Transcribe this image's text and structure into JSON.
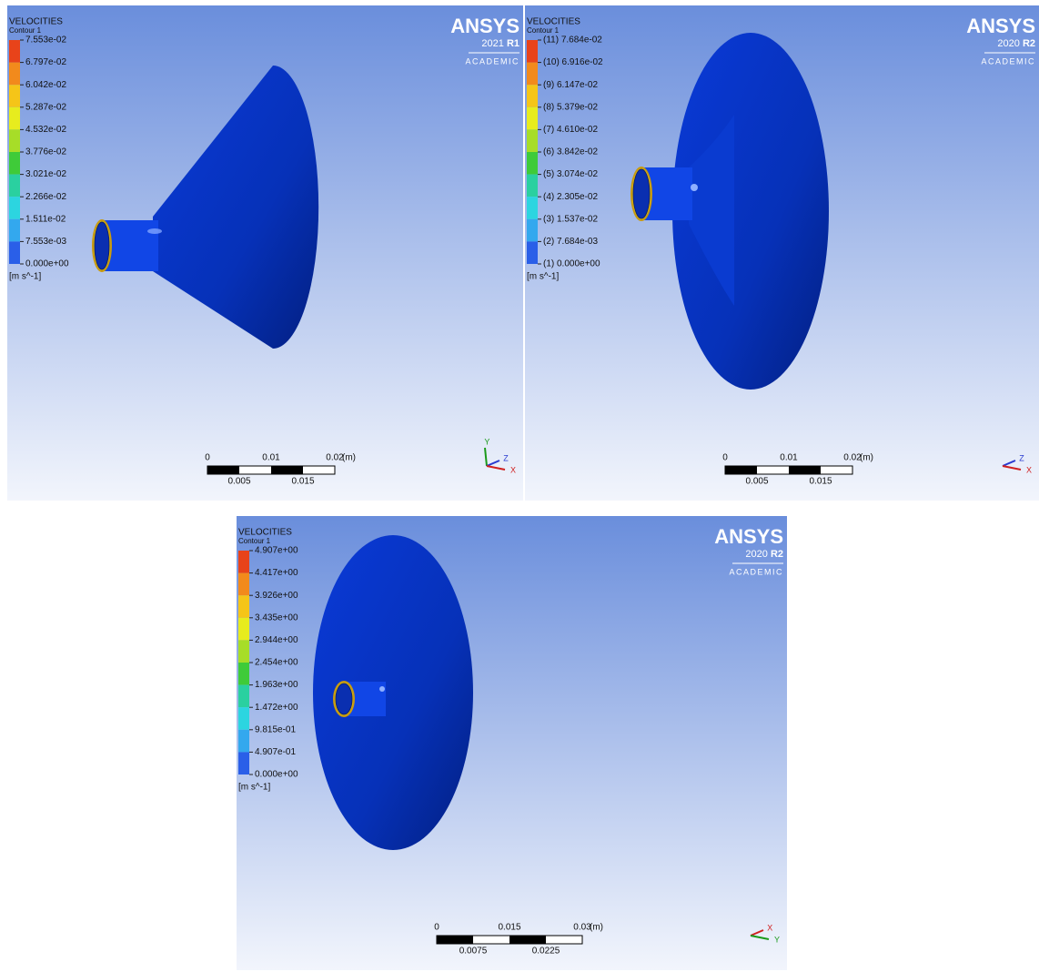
{
  "panels": [
    {
      "title": "VELOCITIES",
      "subtitle": "Contour 1",
      "legend": [
        "7.553e-02",
        "6.797e-02",
        "6.042e-02",
        "5.287e-02",
        "4.532e-02",
        "3.776e-02",
        "3.021e-02",
        "2.266e-02",
        "1.511e-02",
        "7.553e-03",
        "0.000e+00"
      ],
      "unit": "[m s^-1]",
      "logo": {
        "brand": "ANSYS",
        "year": "2021",
        "release": "R1",
        "edition": "ACADEMIC"
      },
      "scale": {
        "top": [
          "0",
          "0.01",
          "0.02",
          "(m)"
        ],
        "bottom": [
          "0.005",
          "0.015"
        ]
      },
      "axes": [
        "Y",
        "Z",
        "X"
      ]
    },
    {
      "title": "VELOCITIES",
      "subtitle": "Contour 1",
      "legend": [
        "(11) 7.684e-02",
        "(10) 6.916e-02",
        "(9) 6.147e-02",
        "(8) 5.379e-02",
        "(7) 4.610e-02",
        "(6) 3.842e-02",
        "(5) 3.074e-02",
        "(4) 2.305e-02",
        "(3) 1.537e-02",
        "(2) 7.684e-03",
        "(1) 0.000e+00"
      ],
      "unit": "[m s^-1]",
      "logo": {
        "brand": "ANSYS",
        "year": "2020",
        "release": "R2",
        "edition": "ACADEMIC"
      },
      "scale": {
        "top": [
          "0",
          "0.01",
          "0.02",
          "(m)"
        ],
        "bottom": [
          "0.005",
          "0.015"
        ]
      },
      "axes": [
        "Z",
        "X"
      ]
    },
    {
      "title": "VELOCITIES",
      "subtitle": "Contour 1",
      "legend": [
        "4.907e+00",
        "4.417e+00",
        "3.926e+00",
        "3.435e+00",
        "2.944e+00",
        "2.454e+00",
        "1.963e+00",
        "1.472e+00",
        "9.815e-01",
        "4.907e-01",
        "0.000e+00"
      ],
      "unit": "[m s^-1]",
      "logo": {
        "brand": "ANSYS",
        "year": "2020",
        "release": "R2",
        "edition": "ACADEMIC"
      },
      "scale": {
        "top": [
          "0",
          "0.015",
          "0.03",
          "(m)"
        ],
        "bottom": [
          "0.0075",
          "0.0225"
        ]
      },
      "axes": [
        "X",
        "Y"
      ]
    }
  ]
}
